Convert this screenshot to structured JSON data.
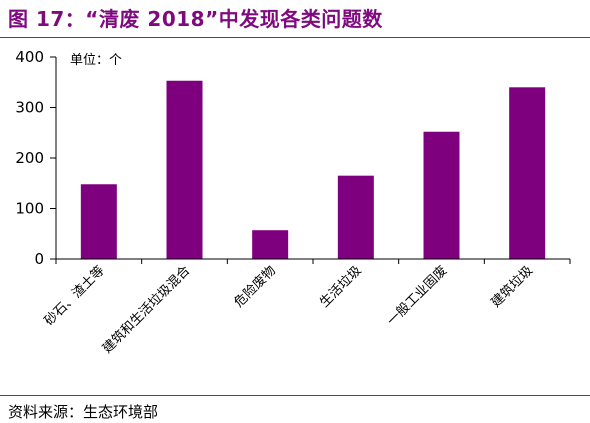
{
  "header": {
    "title": "图 17：“清废 2018”中发现各类问题数"
  },
  "footer": {
    "source": "资料来源：生态环境部"
  },
  "colors": {
    "bar": "#7f007f",
    "title": "#7f0a7f",
    "rule": "#8c1f8c"
  },
  "chart_data": {
    "type": "bar",
    "title": "",
    "unit_label": "单位：个",
    "categories": [
      "砂石、渣土等",
      "建筑和生活垃圾混合",
      "危险废物",
      "生活垃圾",
      "一般工业固废",
      "建筑垃圾"
    ],
    "values": [
      148,
      353,
      57,
      165,
      252,
      340
    ],
    "ylim": [
      0,
      400
    ],
    "yticks": [
      0,
      100,
      200,
      300,
      400
    ],
    "grid": false,
    "legend": "none"
  }
}
